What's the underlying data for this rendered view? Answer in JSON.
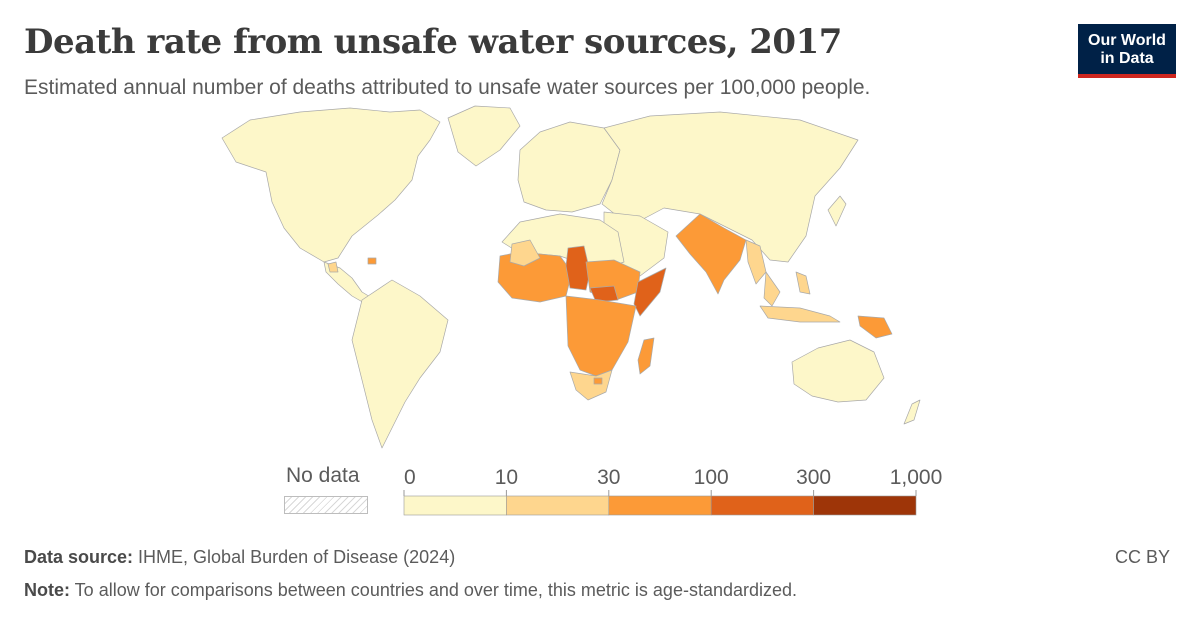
{
  "header": {
    "title": "Death rate from unsafe water sources, 2017",
    "subtitle": "Estimated annual number of deaths attributed to unsafe water sources per 100,000 people.",
    "logo_line1": "Our World",
    "logo_line2": "in Data"
  },
  "legend": {
    "no_data_label": "No data",
    "ticks": [
      "0",
      "10",
      "30",
      "100",
      "300",
      "1,000"
    ],
    "colors": [
      "#fdf7c9",
      "#fed68e",
      "#fc9a37",
      "#e0621a",
      "#9e3508"
    ]
  },
  "map_colors": {
    "ocean": "#ffffff",
    "border": "#a9a9a9"
  },
  "footer": {
    "source_label": "Data source:",
    "source_text": " IHME, Global Burden of Disease (2024)",
    "note_label": "Note:",
    "note_text": " To allow for comparisons between countries and over time, this metric is age-standardized.",
    "license": "CC BY"
  }
}
